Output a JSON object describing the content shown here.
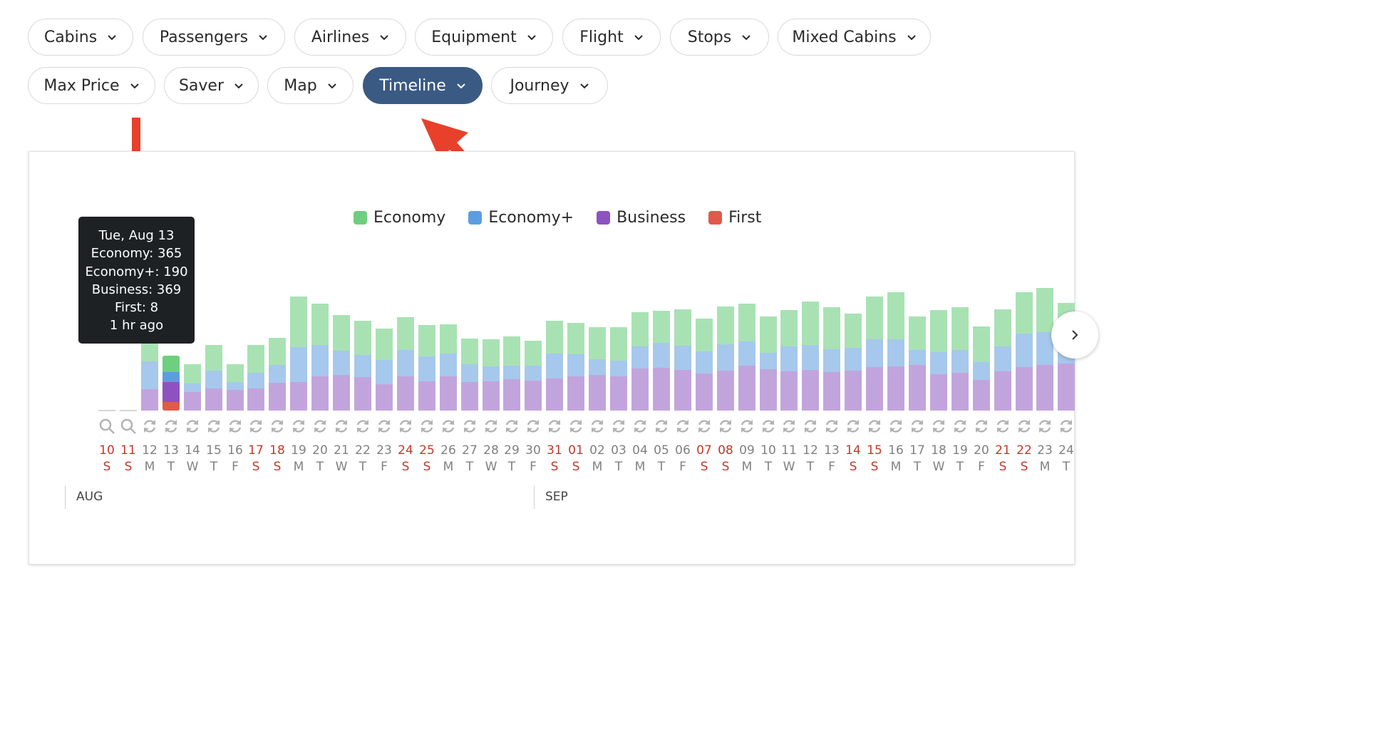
{
  "filters": [
    {
      "label": "Cabins",
      "active": false
    },
    {
      "label": "Passengers",
      "active": false
    },
    {
      "label": "Airlines",
      "active": false
    },
    {
      "label": "Equipment",
      "active": false
    },
    {
      "label": "Flight",
      "active": false
    },
    {
      "label": "Stops",
      "active": false
    },
    {
      "label": "Mixed Cabins",
      "active": false
    },
    {
      "label": "Max Price",
      "active": false
    },
    {
      "label": "Saver",
      "active": false
    },
    {
      "label": "Map",
      "active": false
    },
    {
      "label": "Timeline",
      "active": true
    },
    {
      "label": "Journey",
      "active": false
    }
  ],
  "colors": {
    "accent": "#3a5a84",
    "arrow": "#e8402b",
    "economy": "#6dcf7f",
    "economy_plus": "#5b9ee0",
    "business": "#8e52c0",
    "first": "#e2594a",
    "weekend": "#c0392b"
  },
  "legend": [
    {
      "label": "Economy",
      "color_key": "economy"
    },
    {
      "label": "Economy+",
      "color_key": "economy_plus"
    },
    {
      "label": "Business",
      "color_key": "business"
    },
    {
      "label": "First",
      "color_key": "first"
    }
  ],
  "tooltip": {
    "lines": [
      "Tue, Aug 13",
      "Economy: 365",
      "Economy+: 190",
      "Business: 369",
      "First: 8",
      "1 hr ago"
    ]
  },
  "months": [
    "AUG",
    "SEP"
  ],
  "chart_data": {
    "type": "bar",
    "stacked": true,
    "highlighted_day": "13",
    "series_order": [
      "business",
      "economy_plus",
      "economy",
      "first"
    ],
    "days": [
      {
        "n": "10",
        "d": "S",
        "w": true,
        "status": "search",
        "economy": 0,
        "economy_plus": 0,
        "business": 0,
        "first": 0
      },
      {
        "n": "11",
        "d": "S",
        "w": true,
        "status": "search",
        "economy": 0,
        "economy_plus": 0,
        "business": 0,
        "first": 0
      },
      {
        "n": "12",
        "d": "M",
        "w": false,
        "status": "refresh",
        "economy": 280,
        "economy_plus": 420,
        "business": 320,
        "first": 0
      },
      {
        "n": "13",
        "d": "T",
        "w": false,
        "status": "refresh",
        "economy": 365,
        "economy_plus": 190,
        "business": 369,
        "first": 8
      },
      {
        "n": "14",
        "d": "W",
        "w": false,
        "status": "refresh",
        "economy": 280,
        "economy_plus": 130,
        "business": 280,
        "first": 0
      },
      {
        "n": "15",
        "d": "T",
        "w": false,
        "status": "refresh",
        "economy": 380,
        "economy_plus": 270,
        "business": 330,
        "first": 0
      },
      {
        "n": "16",
        "d": "F",
        "w": false,
        "status": "refresh",
        "economy": 260,
        "economy_plus": 120,
        "business": 310,
        "first": 0
      },
      {
        "n": "17",
        "d": "S",
        "w": true,
        "status": "refresh",
        "economy": 410,
        "economy_plus": 240,
        "business": 330,
        "first": 0
      },
      {
        "n": "18",
        "d": "S",
        "w": true,
        "status": "refresh",
        "economy": 410,
        "economy_plus": 260,
        "business": 420,
        "first": 0
      },
      {
        "n": "19",
        "d": "M",
        "w": false,
        "status": "refresh",
        "economy": 760,
        "economy_plus": 520,
        "business": 430,
        "first": 0
      },
      {
        "n": "20",
        "d": "T",
        "w": false,
        "status": "refresh",
        "economy": 620,
        "economy_plus": 470,
        "business": 510,
        "first": 0
      },
      {
        "n": "21",
        "d": "W",
        "w": false,
        "status": "refresh",
        "economy": 530,
        "economy_plus": 370,
        "business": 530,
        "first": 0
      },
      {
        "n": "22",
        "d": "T",
        "w": false,
        "status": "refresh",
        "economy": 520,
        "economy_plus": 330,
        "business": 500,
        "first": 0
      },
      {
        "n": "23",
        "d": "F",
        "w": false,
        "status": "refresh",
        "economy": 470,
        "economy_plus": 370,
        "business": 390,
        "first": 0
      },
      {
        "n": "24",
        "d": "S",
        "w": true,
        "status": "refresh",
        "economy": 490,
        "economy_plus": 400,
        "business": 510,
        "first": 0
      },
      {
        "n": "25",
        "d": "S",
        "w": true,
        "status": "refresh",
        "economy": 470,
        "economy_plus": 370,
        "business": 440,
        "first": 0
      },
      {
        "n": "26",
        "d": "M",
        "w": false,
        "status": "refresh",
        "economy": 440,
        "economy_plus": 340,
        "business": 510,
        "first": 0
      },
      {
        "n": "27",
        "d": "T",
        "w": false,
        "status": "refresh",
        "economy": 390,
        "economy_plus": 260,
        "business": 430,
        "first": 0
      },
      {
        "n": "28",
        "d": "W",
        "w": false,
        "status": "refresh",
        "economy": 410,
        "economy_plus": 220,
        "business": 440,
        "first": 0
      },
      {
        "n": "29",
        "d": "T",
        "w": false,
        "status": "refresh",
        "economy": 440,
        "economy_plus": 200,
        "business": 470,
        "first": 0
      },
      {
        "n": "30",
        "d": "F",
        "w": false,
        "status": "refresh",
        "economy": 380,
        "economy_plus": 220,
        "business": 450,
        "first": 0
      },
      {
        "n": "31",
        "d": "S",
        "w": true,
        "status": "refresh",
        "economy": 500,
        "economy_plus": 370,
        "business": 480,
        "first": 0
      },
      {
        "n": "01",
        "d": "S",
        "w": true,
        "status": "refresh",
        "economy": 470,
        "economy_plus": 330,
        "business": 510,
        "first": 0
      },
      {
        "n": "02",
        "d": "M",
        "w": false,
        "status": "refresh",
        "economy": 480,
        "economy_plus": 240,
        "business": 530,
        "first": 0
      },
      {
        "n": "03",
        "d": "T",
        "w": false,
        "status": "refresh",
        "economy": 500,
        "economy_plus": 240,
        "business": 510,
        "first": 0
      },
      {
        "n": "04",
        "d": "M",
        "w": false,
        "status": "refresh",
        "economy": 510,
        "economy_plus": 330,
        "business": 630,
        "first": 0
      },
      {
        "n": "05",
        "d": "T",
        "w": false,
        "status": "refresh",
        "economy": 490,
        "economy_plus": 370,
        "business": 640,
        "first": 0
      },
      {
        "n": "06",
        "d": "F",
        "w": false,
        "status": "refresh",
        "economy": 550,
        "economy_plus": 360,
        "business": 610,
        "first": 0
      },
      {
        "n": "07",
        "d": "S",
        "w": true,
        "status": "refresh",
        "economy": 490,
        "economy_plus": 330,
        "business": 560,
        "first": 0
      },
      {
        "n": "08",
        "d": "S",
        "w": true,
        "status": "refresh",
        "economy": 570,
        "economy_plus": 390,
        "business": 600,
        "first": 0
      },
      {
        "n": "09",
        "d": "M",
        "w": false,
        "status": "refresh",
        "economy": 560,
        "economy_plus": 370,
        "business": 670,
        "first": 0
      },
      {
        "n": "10",
        "d": "T",
        "w": false,
        "status": "refresh",
        "economy": 540,
        "economy_plus": 250,
        "business": 620,
        "first": 0
      },
      {
        "n": "11",
        "d": "W",
        "w": false,
        "status": "refresh",
        "economy": 550,
        "economy_plus": 370,
        "business": 590,
        "first": 0
      },
      {
        "n": "12",
        "d": "T",
        "w": false,
        "status": "refresh",
        "economy": 650,
        "economy_plus": 370,
        "business": 610,
        "first": 0
      },
      {
        "n": "13",
        "d": "F",
        "w": false,
        "status": "refresh",
        "economy": 630,
        "economy_plus": 340,
        "business": 580,
        "first": 0
      },
      {
        "n": "14",
        "d": "S",
        "w": true,
        "status": "refresh",
        "economy": 510,
        "economy_plus": 340,
        "business": 600,
        "first": 0
      },
      {
        "n": "15",
        "d": "S",
        "w": true,
        "status": "refresh",
        "economy": 640,
        "economy_plus": 420,
        "business": 650,
        "first": 0
      },
      {
        "n": "16",
        "d": "M",
        "w": false,
        "status": "refresh",
        "economy": 700,
        "economy_plus": 410,
        "business": 660,
        "first": 0
      },
      {
        "n": "17",
        "d": "T",
        "w": false,
        "status": "refresh",
        "economy": 500,
        "economy_plus": 230,
        "business": 680,
        "first": 0
      },
      {
        "n": "18",
        "d": "W",
        "w": false,
        "status": "refresh",
        "economy": 630,
        "economy_plus": 340,
        "business": 540,
        "first": 0
      },
      {
        "n": "19",
        "d": "T",
        "w": false,
        "status": "refresh",
        "economy": 640,
        "economy_plus": 340,
        "business": 570,
        "first": 0
      },
      {
        "n": "20",
        "d": "F",
        "w": false,
        "status": "refresh",
        "economy": 530,
        "economy_plus": 270,
        "business": 460,
        "first": 0
      },
      {
        "n": "21",
        "d": "S",
        "w": true,
        "status": "refresh",
        "economy": 560,
        "economy_plus": 370,
        "business": 590,
        "first": 0
      },
      {
        "n": "22",
        "d": "S",
        "w": true,
        "status": "refresh",
        "economy": 620,
        "economy_plus": 500,
        "business": 650,
        "first": 0
      },
      {
        "n": "23",
        "d": "M",
        "w": false,
        "status": "refresh",
        "economy": 670,
        "economy_plus": 490,
        "business": 680,
        "first": 0
      },
      {
        "n": "24",
        "d": "T",
        "w": false,
        "status": "refresh",
        "economy": 540,
        "economy_plus": 370,
        "business": 700,
        "first": 0
      }
    ]
  }
}
